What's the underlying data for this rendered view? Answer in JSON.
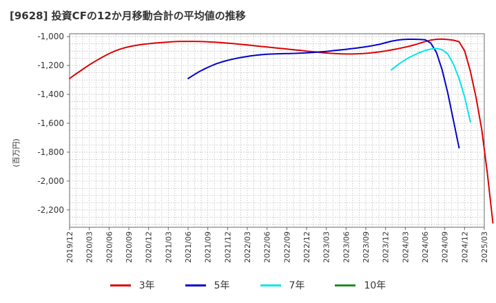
{
  "chart_data": {
    "type": "line",
    "title": "[9628]  投資CFの12か月移動合計の平均値の推移",
    "xlabel": "",
    "ylabel": "(百万円)",
    "x_ticks": [
      "2019/12",
      "2020/03",
      "2020/06",
      "2020/09",
      "2020/12",
      "2021/03",
      "2021/06",
      "2021/09",
      "2021/12",
      "2022/03",
      "2022/06",
      "2022/09",
      "2022/12",
      "2023/03",
      "2023/06",
      "2023/09",
      "2023/12",
      "2024/03",
      "2024/06",
      "2024/09",
      "2024/12",
      "2025/03"
    ],
    "y_ticks": [
      "-1,000",
      "-1,200",
      "-1,400",
      "-1,600",
      "-1,800",
      "-2,000",
      "-2,200"
    ],
    "y_tick_values": [
      -1000,
      -1200,
      -1400,
      -1600,
      -1800,
      -2000,
      -2200
    ],
    "ylim": [
      -2320,
      -980
    ],
    "grid": true,
    "legend_position": "bottom",
    "series": [
      {
        "name": "3年",
        "color": "#dd0000",
        "points": [
          [
            "2019/12",
            -1290
          ],
          [
            "2020/01",
            -1262
          ],
          [
            "2020/02",
            -1235
          ],
          [
            "2020/03",
            -1208
          ],
          [
            "2020/04",
            -1183
          ],
          [
            "2020/05",
            -1160
          ],
          [
            "2020/06",
            -1138
          ],
          [
            "2020/07",
            -1118
          ],
          [
            "2020/08",
            -1100
          ],
          [
            "2020/09",
            -1086
          ],
          [
            "2020/10",
            -1075
          ],
          [
            "2020/11",
            -1066
          ],
          [
            "2020/12",
            -1059
          ],
          [
            "2021/01",
            -1053
          ],
          [
            "2021/02",
            -1049
          ],
          [
            "2021/03",
            -1045
          ],
          [
            "2021/04",
            -1042
          ],
          [
            "2021/05",
            -1039
          ],
          [
            "2021/06",
            -1036
          ],
          [
            "2021/07",
            -1034
          ],
          [
            "2021/08",
            -1033
          ],
          [
            "2021/09",
            -1033
          ],
          [
            "2021/10",
            -1033
          ],
          [
            "2021/11",
            -1034
          ],
          [
            "2021/12",
            -1035
          ],
          [
            "2022/01",
            -1037
          ],
          [
            "2022/02",
            -1039
          ],
          [
            "2022/03",
            -1042
          ],
          [
            "2022/04",
            -1045
          ],
          [
            "2022/05",
            -1048
          ],
          [
            "2022/06",
            -1052
          ],
          [
            "2022/07",
            -1056
          ],
          [
            "2022/08",
            -1060
          ],
          [
            "2022/09",
            -1064
          ],
          [
            "2022/10",
            -1068
          ],
          [
            "2022/11",
            -1072
          ],
          [
            "2022/12",
            -1076
          ],
          [
            "2023/01",
            -1080
          ],
          [
            "2023/02",
            -1084
          ],
          [
            "2023/03",
            -1088
          ],
          [
            "2023/04",
            -1092
          ],
          [
            "2023/05",
            -1096
          ],
          [
            "2023/06",
            -1100
          ],
          [
            "2023/07",
            -1104
          ],
          [
            "2023/08",
            -1108
          ],
          [
            "2023/09",
            -1112
          ],
          [
            "2023/10",
            -1115
          ],
          [
            "2023/11",
            -1117
          ],
          [
            "2023/12",
            -1119
          ],
          [
            "2024/01",
            -1120
          ],
          [
            "2024/02",
            -1120
          ],
          [
            "2024/03",
            -1119
          ],
          [
            "2024/04",
            -1117
          ],
          [
            "2024/05",
            -1114
          ],
          [
            "2024/06",
            -1110
          ],
          [
            "2024/07",
            -1105
          ],
          [
            "2024/08",
            -1099
          ],
          [
            "2024/09",
            -1092
          ],
          [
            "2024/10",
            -1085
          ],
          [
            "2024/11",
            -1077
          ],
          [
            "2024/12",
            -1068
          ],
          [
            "2025/01",
            -1058
          ],
          [
            "2025/02",
            -1046
          ],
          [
            "2025/03",
            -1034
          ],
          [
            "2025/04",
            -1024
          ],
          [
            "2025/05",
            -1018
          ],
          [
            "2025/06",
            -1017
          ],
          [
            "2025/07",
            -1020
          ],
          [
            "2025/08",
            -1025
          ],
          [
            "2025/09",
            -1035
          ],
          [
            "2025/10",
            -1100
          ],
          [
            "2025/11",
            -1240
          ],
          [
            "2025/12",
            -1420
          ],
          [
            "2026/01",
            -1640
          ],
          [
            "2026/02",
            -1940
          ],
          [
            "2026/03",
            -2290
          ]
        ]
      },
      {
        "name": "5年",
        "color": "#0000cc",
        "points": [
          [
            "2021/09",
            -1290
          ],
          [
            "2021/10",
            -1265
          ],
          [
            "2021/11",
            -1242
          ],
          [
            "2021/12",
            -1222
          ],
          [
            "2022/01",
            -1204
          ],
          [
            "2022/02",
            -1188
          ],
          [
            "2022/03",
            -1175
          ],
          [
            "2022/04",
            -1164
          ],
          [
            "2022/05",
            -1155
          ],
          [
            "2022/06",
            -1147
          ],
          [
            "2022/07",
            -1140
          ],
          [
            "2022/08",
            -1134
          ],
          [
            "2022/09",
            -1129
          ],
          [
            "2022/10",
            -1125
          ],
          [
            "2022/11",
            -1122
          ],
          [
            "2022/12",
            -1120
          ],
          [
            "2023/01",
            -1119
          ],
          [
            "2023/02",
            -1118
          ],
          [
            "2023/03",
            -1117
          ],
          [
            "2023/04",
            -1116
          ],
          [
            "2023/05",
            -1114
          ],
          [
            "2023/06",
            -1112
          ],
          [
            "2023/07",
            -1110
          ],
          [
            "2023/08",
            -1107
          ],
          [
            "2023/09",
            -1104
          ],
          [
            "2023/10",
            -1100
          ],
          [
            "2023/11",
            -1096
          ],
          [
            "2023/12",
            -1092
          ],
          [
            "2024/01",
            -1088
          ],
          [
            "2024/02",
            -1083
          ],
          [
            "2024/03",
            -1078
          ],
          [
            "2024/04",
            -1073
          ],
          [
            "2024/05",
            -1067
          ],
          [
            "2024/06",
            -1060
          ],
          [
            "2024/07",
            -1052
          ],
          [
            "2024/08",
            -1042
          ],
          [
            "2024/09",
            -1032
          ],
          [
            "2024/10",
            -1025
          ],
          [
            "2024/11",
            -1020
          ],
          [
            "2024/12",
            -1018
          ],
          [
            "2025/01",
            -1018
          ],
          [
            "2025/02",
            -1019
          ],
          [
            "2025/03",
            -1022
          ],
          [
            "2025/04",
            -1045
          ],
          [
            "2025/05",
            -1110
          ],
          [
            "2025/06",
            -1230
          ],
          [
            "2025/07",
            -1390
          ],
          [
            "2025/08",
            -1580
          ],
          [
            "2025/09",
            -1770
          ]
        ]
      },
      {
        "name": "7年",
        "color": "#00e5ee",
        "points": [
          [
            "2024/09",
            -1230
          ],
          [
            "2024/10",
            -1200
          ],
          [
            "2024/11",
            -1172
          ],
          [
            "2024/12",
            -1148
          ],
          [
            "2025/01",
            -1128
          ],
          [
            "2025/02",
            -1110
          ],
          [
            "2025/03",
            -1096
          ],
          [
            "2025/04",
            -1086
          ],
          [
            "2025/05",
            -1082
          ],
          [
            "2025/06",
            -1090
          ],
          [
            "2025/07",
            -1120
          ],
          [
            "2025/08",
            -1190
          ],
          [
            "2025/09",
            -1290
          ],
          [
            "2025/10",
            -1420
          ],
          [
            "2025/11",
            -1590
          ]
        ]
      },
      {
        "name": "10年",
        "color": "#228b22",
        "points": []
      }
    ]
  }
}
